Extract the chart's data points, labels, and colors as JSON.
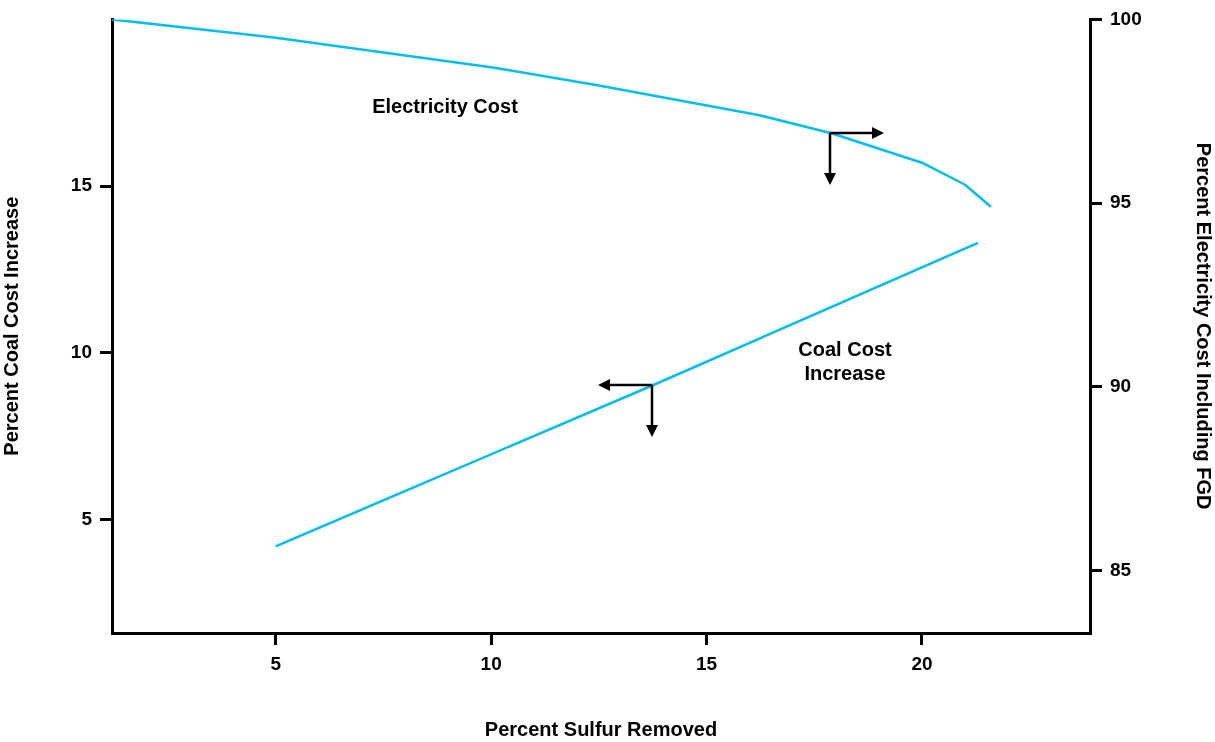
{
  "chart_data": {
    "type": "line",
    "xlabel": "Percent Sulfur Removed",
    "ylabel": "Percent Coal Cost Increase",
    "y2label": "Percent Electricity Cost Including FGD",
    "xlim": [
      1.2,
      23.9
    ],
    "xticks": [
      5,
      10,
      15,
      20
    ],
    "ylim": [
      1.6,
      20
    ],
    "yticks": [
      5,
      10,
      15
    ],
    "y2lim": [
      83.3,
      100
    ],
    "y2ticks": [
      85,
      90,
      95,
      100
    ],
    "grid": false,
    "legend": false,
    "marker": "none",
    "line_style": "solid",
    "series": [
      {
        "name": "Electricity Cost",
        "color": "#00bfef",
        "axis": "y2",
        "x": [
          1.2,
          5,
          10,
          12.5,
          16.2,
          17.9,
          20,
          21,
          21.6
        ],
        "values": [
          100,
          99.5,
          98.7,
          98.2,
          97.4,
          96.9,
          96.1,
          95.5,
          94.9
        ]
      },
      {
        "name": "Coal Cost Increase",
        "color": "#00bfef",
        "axis": "y",
        "x": [
          5,
          13.7,
          21.3
        ],
        "values": [
          4.2,
          9,
          13.3
        ]
      }
    ]
  }
}
